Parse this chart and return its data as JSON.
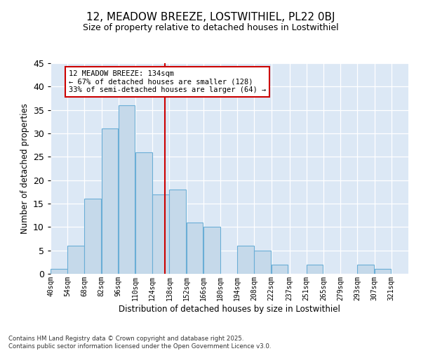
{
  "title": "12, MEADOW BREEZE, LOSTWITHIEL, PL22 0BJ",
  "subtitle": "Size of property relative to detached houses in Lostwithiel",
  "xlabel": "Distribution of detached houses by size in Lostwithiel",
  "ylabel": "Number of detached properties",
  "bin_labels": [
    "40sqm",
    "54sqm",
    "68sqm",
    "82sqm",
    "96sqm",
    "110sqm",
    "124sqm",
    "138sqm",
    "152sqm",
    "166sqm",
    "180sqm",
    "194sqm",
    "208sqm",
    "222sqm",
    "237sqm",
    "251sqm",
    "265sqm",
    "279sqm",
    "293sqm",
    "307sqm",
    "321sqm"
  ],
  "bin_edges": [
    40,
    54,
    68,
    82,
    96,
    110,
    124,
    138,
    152,
    166,
    180,
    194,
    208,
    222,
    237,
    251,
    265,
    279,
    293,
    307,
    321
  ],
  "counts": [
    1,
    6,
    16,
    31,
    36,
    26,
    17,
    18,
    11,
    10,
    0,
    6,
    5,
    2,
    0,
    2,
    0,
    0,
    2,
    1,
    0
  ],
  "bar_color": "#c5d9ea",
  "bar_edge_color": "#6aaed6",
  "vline_x": 134,
  "vline_color": "#cc0000",
  "ylim": [
    0,
    45
  ],
  "yticks": [
    0,
    5,
    10,
    15,
    20,
    25,
    30,
    35,
    40,
    45
  ],
  "annotation_title": "12 MEADOW BREEZE: 134sqm",
  "annotation_line1": "← 67% of detached houses are smaller (128)",
  "annotation_line2": "33% of semi-detached houses are larger (64) →",
  "annotation_box_color": "#ffffff",
  "annotation_border_color": "#cc0000",
  "bg_color": "#dce8f5",
  "footer1": "Contains HM Land Registry data © Crown copyright and database right 2025.",
  "footer2": "Contains public sector information licensed under the Open Government Licence v3.0."
}
